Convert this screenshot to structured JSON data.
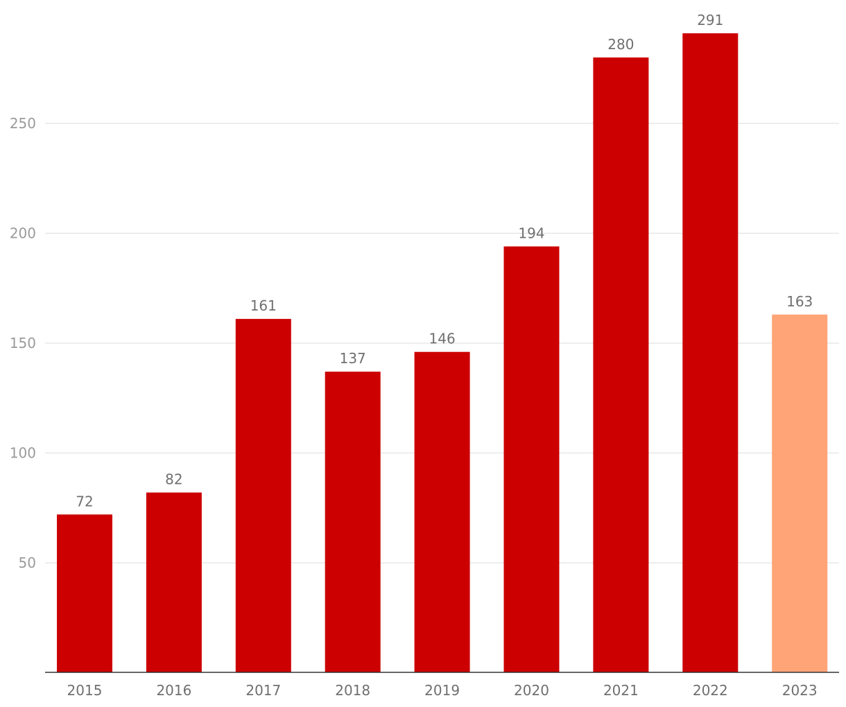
{
  "chart_data": {
    "type": "bar",
    "title": "",
    "xlabel": "",
    "ylabel": "",
    "categories": [
      "2015",
      "2016",
      "2017",
      "2018",
      "2019",
      "2020",
      "2021",
      "2022",
      "2023"
    ],
    "values": [
      72,
      82,
      161,
      137,
      146,
      194,
      280,
      291,
      163
    ],
    "data_labels": [
      "72",
      "82",
      "161",
      "137",
      "146",
      "194",
      "280",
      "291",
      "163"
    ],
    "ylim": [
      0,
      300
    ],
    "yticks": [
      50,
      100,
      150,
      200,
      250
    ],
    "ytick_labels": [
      "50",
      "100",
      "150",
      "200",
      "250"
    ],
    "grid": true,
    "legend": "none",
    "colors": {
      "bar": "#cc0000",
      "highlight_bar": "#ffa477",
      "highlight_category": "2023"
    }
  }
}
